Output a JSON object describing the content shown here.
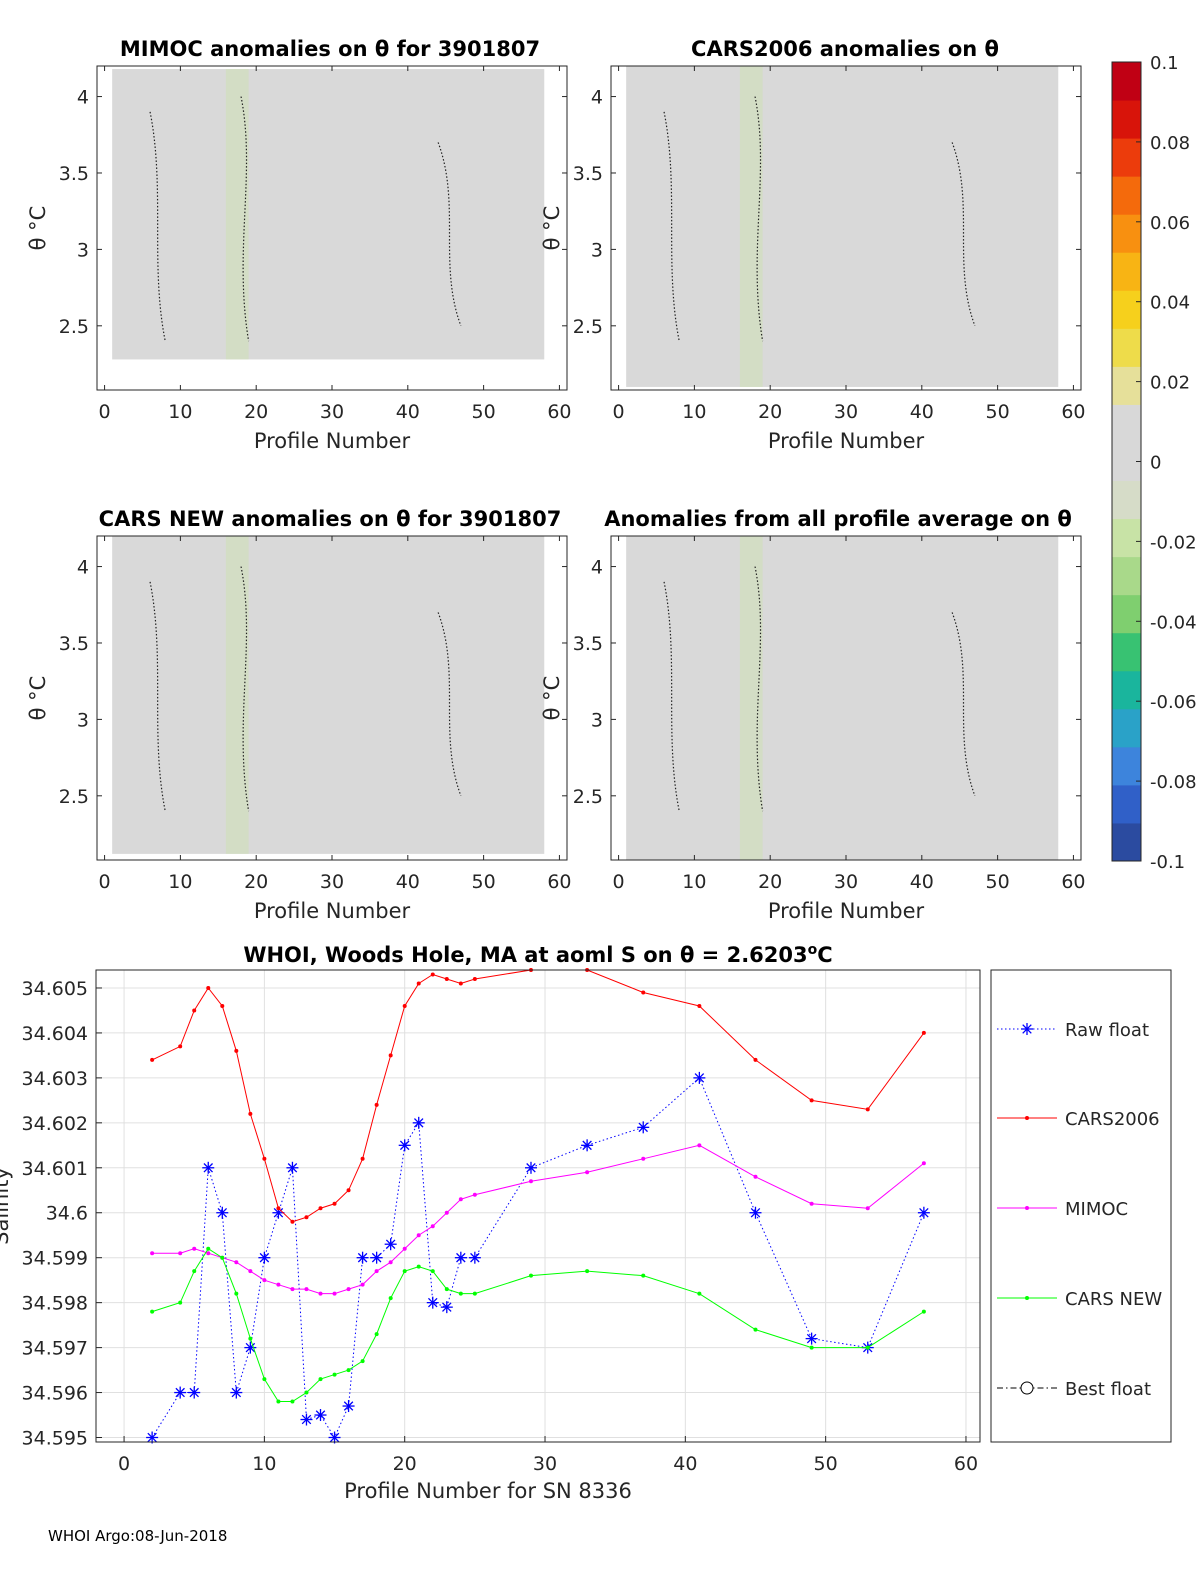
{
  "colorbar": {
    "ticks": [
      0.1,
      0.08,
      0.06,
      0.04,
      0.02,
      0,
      -0.02,
      -0.04,
      -0.06,
      -0.08,
      -0.1
    ],
    "tick_labels": [
      "0.1",
      "0.08",
      "0.06",
      "0.04",
      "0.02",
      "0",
      "-0.02",
      "-0.04",
      "-0.06",
      "-0.08",
      "-0.1"
    ],
    "colors": [
      "#2b4ba0",
      "#3060c8",
      "#3d84dc",
      "#2aa2c8",
      "#1ab59d",
      "#38c272",
      "#7fcf6f",
      "#a9d98a",
      "#c8e3a6",
      "#d6dcc8",
      "#d8d8d8",
      "#d8d8d8",
      "#e6e09a",
      "#eedc4a",
      "#f6d01c",
      "#f8b414",
      "#f89010",
      "#f46a0c",
      "#ec3c0c",
      "#d8140a",
      "#c00014"
    ]
  },
  "chart_data": [
    {
      "type": "heatmap",
      "title": "MIMOC anomalies on θ  for 3901807",
      "xlabel": "Profile Number",
      "ylabel": "θ °C",
      "xlim": [
        -1,
        61
      ],
      "ylim": [
        2.08,
        4.2
      ],
      "xticks": [
        "0",
        "10",
        "20",
        "30",
        "40",
        "50",
        "60"
      ],
      "yticks": [
        "2.5",
        "3",
        "3.5",
        "4"
      ],
      "data_extent": {
        "x": [
          1,
          58
        ],
        "y": [
          2.28,
          4.18
        ]
      }
    },
    {
      "type": "heatmap",
      "title": "CARS2006 anomalies on θ",
      "xlabel": "Profile Number",
      "ylabel": "θ °C",
      "xlim": [
        -1,
        61
      ],
      "ylim": [
        2.08,
        4.2
      ],
      "xticks": [
        "0",
        "10",
        "20",
        "30",
        "40",
        "50",
        "60"
      ],
      "yticks": [
        "2.5",
        "3",
        "3.5",
        "4"
      ],
      "data_extent": {
        "x": [
          1,
          58
        ],
        "y": [
          2.1,
          4.2
        ]
      }
    },
    {
      "type": "heatmap",
      "title": "CARS NEW anomalies on θ for 3901807",
      "xlabel": "Profile Number",
      "ylabel": "θ °C",
      "xlim": [
        -1,
        61
      ],
      "ylim": [
        2.08,
        4.2
      ],
      "xticks": [
        "0",
        "10",
        "20",
        "30",
        "40",
        "50",
        "60"
      ],
      "yticks": [
        "2.5",
        "3",
        "3.5",
        "4"
      ],
      "data_extent": {
        "x": [
          1,
          58
        ],
        "y": [
          2.12,
          4.2
        ]
      }
    },
    {
      "type": "heatmap",
      "title": "Anomalies from all profile average on θ",
      "xlabel": "Profile Number",
      "ylabel": "θ °C",
      "xlim": [
        -1,
        61
      ],
      "ylim": [
        2.08,
        4.2
      ],
      "xticks": [
        "0",
        "10",
        "20",
        "30",
        "40",
        "50",
        "60"
      ],
      "yticks": [
        "2.5",
        "3",
        "3.5",
        "4"
      ],
      "data_extent": {
        "x": [
          1,
          58
        ],
        "y": [
          2.08,
          4.2
        ]
      }
    },
    {
      "type": "line",
      "title_prefix": "WHOI, Woods Hole, MA at aoml S on θ = 2.6203",
      "title_sup": "o",
      "title_suffix": "C",
      "xlabel": "Profile Number for SN 8336",
      "ylabel": "Salinity",
      "xlim": [
        -2,
        61
      ],
      "ylim": [
        34.5949,
        34.6054
      ],
      "xticks": [
        0,
        10,
        20,
        30,
        40,
        50,
        60
      ],
      "yticks": [
        34.595,
        34.596,
        34.597,
        34.598,
        34.599,
        34.6,
        34.601,
        34.602,
        34.603,
        34.604,
        34.605
      ],
      "ytick_labels": [
        "34.595",
        "34.596",
        "34.597",
        "34.598",
        "34.599",
        "34.6",
        "34.601",
        "34.602",
        "34.603",
        "34.604",
        "34.605"
      ],
      "grid": true,
      "legend_position": "right-outside",
      "series": [
        {
          "name": "Raw float",
          "color": "#0000ff",
          "style": "dotted",
          "marker": "asterisk",
          "x": [
            2,
            4,
            5,
            6,
            7,
            8,
            9,
            10,
            11,
            12,
            13,
            14,
            15,
            16,
            17,
            18,
            19,
            20,
            21,
            22,
            23,
            24,
            25,
            29,
            33,
            37,
            41,
            45,
            49,
            53,
            57
          ],
          "y": [
            34.595,
            34.596,
            34.596,
            34.601,
            34.6,
            34.596,
            34.597,
            34.599,
            34.6,
            34.601,
            34.5954,
            34.5955,
            34.595,
            34.5957,
            34.599,
            34.599,
            34.5993,
            34.6015,
            34.602,
            34.598,
            34.5979,
            34.599,
            34.599,
            34.601,
            34.6015,
            34.6019,
            34.603,
            34.6,
            34.5972,
            34.597,
            34.6
          ]
        },
        {
          "name": "CARS2006",
          "color": "#ff0000",
          "style": "solid",
          "marker": "dot",
          "x": [
            2,
            4,
            5,
            6,
            7,
            8,
            9,
            10,
            11,
            12,
            13,
            14,
            15,
            16,
            17,
            18,
            19,
            20,
            21,
            22,
            23,
            24,
            25,
            29,
            33,
            37,
            41,
            45,
            49,
            53,
            57
          ],
          "y": [
            34.6034,
            34.6037,
            34.6045,
            34.605,
            34.6046,
            34.6036,
            34.6022,
            34.6012,
            34.6001,
            34.5998,
            34.5999,
            34.6001,
            34.6002,
            34.6005,
            34.6012,
            34.6024,
            34.6035,
            34.6046,
            34.6051,
            34.6053,
            34.6052,
            34.6051,
            34.6052,
            34.6054,
            34.6054,
            34.6049,
            34.6046,
            34.6034,
            34.6025,
            34.6023,
            34.604
          ]
        },
        {
          "name": "MIMOC",
          "color": "#ff00ff",
          "style": "solid",
          "marker": "dot",
          "x": [
            2,
            4,
            5,
            6,
            7,
            8,
            9,
            10,
            11,
            12,
            13,
            14,
            15,
            16,
            17,
            18,
            19,
            20,
            21,
            22,
            23,
            24,
            25,
            29,
            33,
            37,
            41,
            45,
            49,
            53,
            57
          ],
          "y": [
            34.5991,
            34.5991,
            34.5992,
            34.5991,
            34.599,
            34.5989,
            34.5987,
            34.5985,
            34.5984,
            34.5983,
            34.5983,
            34.5982,
            34.5982,
            34.5983,
            34.5984,
            34.5987,
            34.5989,
            34.5992,
            34.5995,
            34.5997,
            34.6,
            34.6003,
            34.6004,
            34.6007,
            34.6009,
            34.6012,
            34.6015,
            34.6008,
            34.6002,
            34.6001,
            34.6011
          ]
        },
        {
          "name": "CARS NEW",
          "color": "#00ff00",
          "style": "solid",
          "marker": "dot",
          "x": [
            2,
            4,
            5,
            6,
            7,
            8,
            9,
            10,
            11,
            12,
            13,
            14,
            15,
            16,
            17,
            18,
            19,
            20,
            21,
            22,
            23,
            24,
            25,
            29,
            33,
            37,
            41,
            45,
            49,
            53,
            57
          ],
          "y": [
            34.5978,
            34.598,
            34.5987,
            34.5992,
            34.599,
            34.5982,
            34.5972,
            34.5963,
            34.5958,
            34.5958,
            34.596,
            34.5963,
            34.5964,
            34.5965,
            34.5967,
            34.5973,
            34.5981,
            34.5987,
            34.5988,
            34.5987,
            34.5983,
            34.5982,
            34.5982,
            34.5986,
            34.5987,
            34.5986,
            34.5982,
            34.5974,
            34.597,
            34.597,
            34.5978
          ]
        },
        {
          "name": "Best float",
          "color": "#000000",
          "style": "dashdot",
          "marker": "circle",
          "x": [],
          "y": []
        }
      ]
    }
  ],
  "footer": "WHOI Argo:08-Jun-2018"
}
